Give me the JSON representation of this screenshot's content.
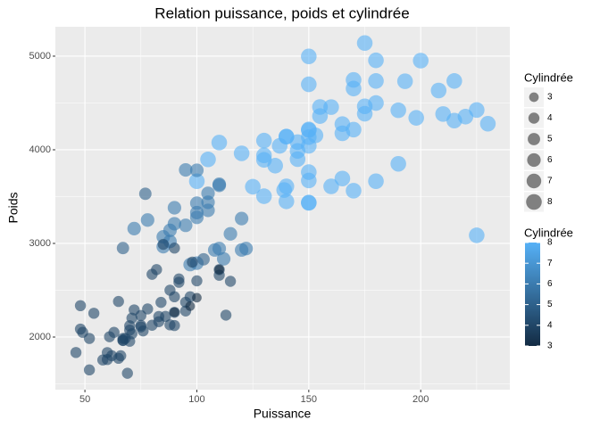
{
  "chart_data": {
    "type": "scatter",
    "title": "Relation puissance, poids et cylindrée",
    "x_label": "Puissance",
    "y_label": "Poids",
    "xlim": [
      36.8,
      239.8
    ],
    "xticks": [
      50,
      100,
      150,
      200
    ],
    "ylim": [
      1438,
      5314
    ],
    "yticks": [
      2000,
      3000,
      4000,
      5000
    ],
    "grid": true,
    "x": [
      130,
      165,
      150,
      150,
      140,
      198,
      220,
      215,
      225,
      190,
      170,
      160,
      150,
      225,
      175,
      153,
      175,
      170,
      180,
      208,
      155,
      160,
      190,
      150,
      130,
      140,
      150,
      180,
      175,
      145,
      230,
      215,
      200,
      210,
      193,
      165,
      150,
      170,
      180,
      145,
      150,
      150,
      140,
      150,
      165,
      180,
      137,
      110,
      140,
      150,
      135,
      120,
      145,
      139,
      125,
      105,
      130,
      155,
      170,
      130,
      100,
      97,
      88,
      100,
      105,
      100,
      88,
      100,
      85,
      110,
      95,
      90,
      105,
      100,
      110,
      115,
      90,
      120,
      122,
      105,
      85,
      110,
      100,
      95,
      72,
      108,
      112,
      78,
      120,
      46,
      88,
      95,
      97,
      90,
      113,
      70,
      76,
      65,
      69,
      60,
      70,
      95,
      80,
      54,
      90,
      86,
      67,
      52,
      61,
      75,
      75,
      83,
      67,
      78,
      110,
      48,
      66,
      52,
      70,
      60,
      110,
      75,
      63,
      65,
      92,
      88,
      72,
      84,
      92,
      115,
      98,
      80,
      90,
      100,
      62,
      68,
      58,
      85,
      71,
      49,
      90,
      82,
      83,
      67,
      48,
      71,
      77,
      67,
      103,
      90,
      97,
      110,
      100
    ],
    "y": [
      3504,
      3693,
      3436,
      3433,
      3449,
      4341,
      4354,
      4312,
      4425,
      3850,
      3563,
      3609,
      3761,
      3086,
      4464,
      4154,
      4385,
      4746,
      4955,
      4633,
      4457,
      4456,
      4422,
      4997,
      3892,
      4141,
      4135,
      4735,
      5140,
      4082,
      4278,
      4735,
      4952,
      4382,
      4732,
      4274,
      4699,
      4654,
      3664,
      3988,
      4042,
      3672,
      4140,
      4209,
      4176,
      4499,
      4042,
      4077,
      3609,
      4217,
      3830,
      3962,
      3900,
      3570,
      3605,
      3897,
      3940,
      4360,
      4215,
      4098,
      3664,
      2774,
      3139,
      3329,
      3439,
      3278,
      3021,
      2789,
      3070,
      2945,
      3193,
      3210,
      3353,
      3781,
      3632,
      3102,
      3381,
      3265,
      2945,
      3535,
      2965,
      3620,
      3430,
      3785,
      3158,
      2930,
      2835,
      3250,
      2930,
      1835,
      2130,
      2372,
      2430,
      2264,
      2234,
      2074,
      2065,
      1773,
      1613,
      1834,
      1955,
      2278,
      2126,
      2254,
      2123,
      2220,
      1963,
      1649,
      2003,
      2125,
      2108,
      2164,
      1985,
      2300,
      2660,
      2335,
      1800,
      1985,
      2120,
      1760,
      2720,
      2230,
      2050,
      2380,
      2585,
      2500,
      2290,
      2370,
      2620,
      2595,
      2800,
      2670,
      2950,
      2600,
      1800,
      1985,
      1755,
      2990,
      2202,
      2050,
      2430,
      2720,
      2219,
      1965,
      2085,
      2035,
      3530,
      2950,
      2830,
      2265,
      2330,
      2720,
      2420
    ],
    "size": [
      8,
      8,
      8,
      8,
      8,
      8,
      8,
      8,
      8,
      8,
      8,
      8,
      8,
      8,
      8,
      8,
      8,
      8,
      8,
      8,
      8,
      8,
      8,
      8,
      8,
      8,
      8,
      8,
      8,
      8,
      8,
      8,
      8,
      8,
      8,
      8,
      8,
      8,
      8,
      8,
      8,
      8,
      8,
      8,
      8,
      8,
      8,
      8,
      8,
      8,
      8,
      8,
      8,
      8,
      8,
      8,
      8,
      8,
      8,
      8,
      8,
      6,
      6,
      6,
      6,
      6,
      6,
      6,
      6,
      6,
      6,
      6,
      6,
      6,
      6,
      6,
      6,
      6,
      6,
      6,
      6,
      6,
      6,
      6,
      6,
      6,
      6,
      6,
      6,
      4,
      4,
      4,
      4,
      4,
      4,
      4,
      4,
      4,
      4,
      4,
      4,
      4,
      4,
      4,
      4,
      4,
      4,
      4,
      4,
      4,
      4,
      4,
      4,
      4,
      4,
      4,
      4,
      4,
      4,
      4,
      4,
      4,
      4,
      4,
      4,
      4,
      4,
      4,
      4,
      4,
      4,
      4,
      4,
      4,
      4,
      4,
      4,
      4,
      4,
      4,
      4,
      4,
      4,
      4,
      4,
      4,
      5,
      5,
      5,
      3,
      3,
      3,
      3
    ],
    "size_legend_title": "Cylindrée",
    "size_breaks": [
      3,
      4,
      5,
      6,
      7,
      8
    ],
    "color_legend_title": "Cylindrée",
    "color_low": "#132B43",
    "color_high": "#56B1F7",
    "color_lim": [
      3,
      8
    ],
    "color_ticks": [
      3,
      4,
      5,
      6,
      7,
      8
    ]
  }
}
